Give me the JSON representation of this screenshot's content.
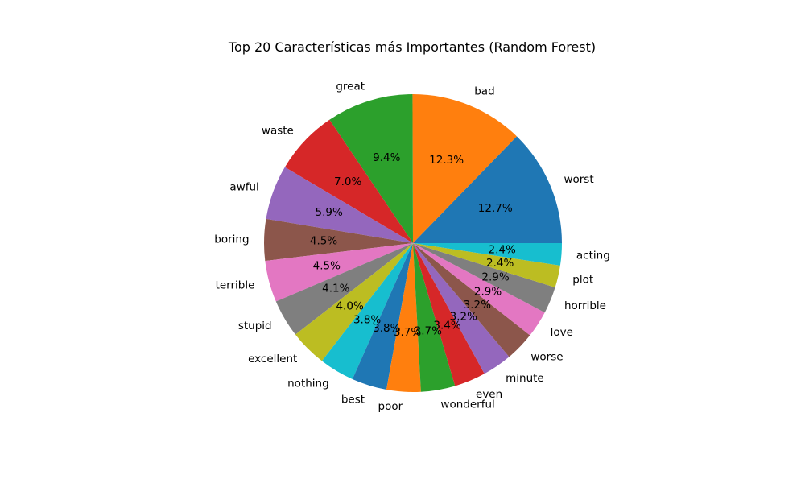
{
  "chart_data": {
    "type": "pie",
    "title": "Top 20 Características más Importantes (Random Forest)",
    "start_angle_deg": 0,
    "direction": "counterclockwise",
    "slices": [
      {
        "label": "worst",
        "value": 12.7,
        "pct_text": "12.7%",
        "color": "#1f77b4"
      },
      {
        "label": "bad",
        "value": 12.3,
        "pct_text": "12.3%",
        "color": "#ff7f0e"
      },
      {
        "label": "great",
        "value": 9.4,
        "pct_text": "9.4%",
        "color": "#2ca02c"
      },
      {
        "label": "waste",
        "value": 7.0,
        "pct_text": "7.0%",
        "color": "#d62728"
      },
      {
        "label": "awful",
        "value": 5.9,
        "pct_text": "5.9%",
        "color": "#9467bd"
      },
      {
        "label": "boring",
        "value": 4.5,
        "pct_text": "4.5%",
        "color": "#8c564b"
      },
      {
        "label": "terrible",
        "value": 4.5,
        "pct_text": "4.5%",
        "color": "#e377c2"
      },
      {
        "label": "stupid",
        "value": 4.1,
        "pct_text": "4.1%",
        "color": "#7f7f7f"
      },
      {
        "label": "excellent",
        "value": 4.0,
        "pct_text": "4.0%",
        "color": "#bcbd22"
      },
      {
        "label": "nothing",
        "value": 3.8,
        "pct_text": "3.8%",
        "color": "#17becf"
      },
      {
        "label": "best",
        "value": 3.8,
        "pct_text": "3.8%",
        "color": "#1f77b4"
      },
      {
        "label": "poor",
        "value": 3.7,
        "pct_text": "3.7%",
        "color": "#ff7f0e"
      },
      {
        "label": "wonderful",
        "value": 3.7,
        "pct_text": "3.7%",
        "color": "#2ca02c"
      },
      {
        "label": "even",
        "value": 3.4,
        "pct_text": "3.4%",
        "color": "#d62728"
      },
      {
        "label": "minute",
        "value": 3.2,
        "pct_text": "3.2%",
        "color": "#9467bd"
      },
      {
        "label": "worse",
        "value": 3.2,
        "pct_text": "3.2%",
        "color": "#8c564b"
      },
      {
        "label": "love",
        "value": 2.9,
        "pct_text": "2.9%",
        "color": "#e377c2"
      },
      {
        "label": "horrible",
        "value": 2.9,
        "pct_text": "2.9%",
        "color": "#7f7f7f"
      },
      {
        "label": "plot",
        "value": 2.4,
        "pct_text": "2.4%",
        "color": "#bcbd22"
      },
      {
        "label": "acting",
        "value": 2.4,
        "pct_text": "2.4%",
        "color": "#17becf"
      }
    ]
  }
}
